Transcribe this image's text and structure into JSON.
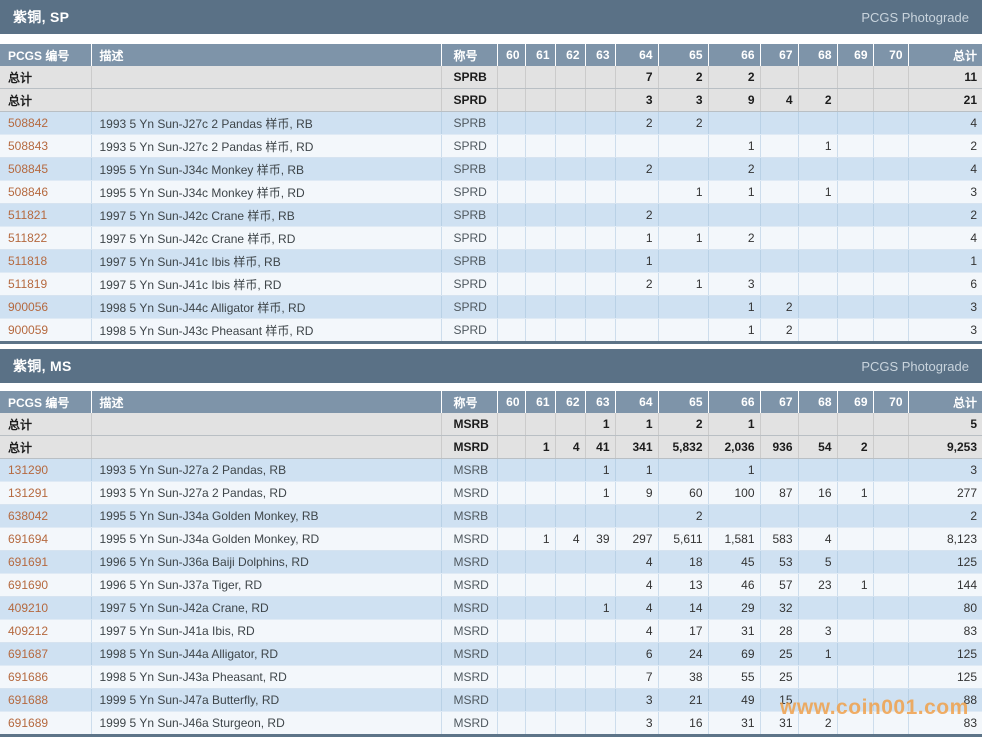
{
  "photograde_label": "PCGS Photograde",
  "total_label": "总计",
  "watermark": "www.coin001.com",
  "header": {
    "pcgs": "PCGS 编号",
    "desc": "描述",
    "grade": "称号",
    "total": "总计"
  },
  "columns": [
    "60",
    "61",
    "62",
    "63",
    "64",
    "65",
    "66",
    "67",
    "68",
    "69",
    "70"
  ],
  "colors": {
    "section_bar": "#5A7186",
    "column_header": "#7E94A9",
    "totals_row_bg": "#E2E2E2",
    "row_blue": "#CFE1F2",
    "row_white": "#F3F7FB",
    "pcgs_link": "#B5693F",
    "watermark": "#F0A04C"
  },
  "sections": [
    {
      "title": "紫铜, SP",
      "totals": [
        {
          "grade": "SPRB",
          "values": {
            "64": "7",
            "65": "2",
            "66": "2"
          },
          "total": "11"
        },
        {
          "grade": "SPRD",
          "values": {
            "64": "3",
            "65": "3",
            "66": "9",
            "67": "4",
            "68": "2"
          },
          "total": "21"
        }
      ],
      "rows": [
        {
          "pcgs": "508842",
          "desc": "1993 5 Yn Sun-J27c 2 Pandas 样币, RB",
          "grade": "SPRB",
          "values": {
            "64": "2",
            "65": "2"
          },
          "total": "4"
        },
        {
          "pcgs": "508843",
          "desc": "1993 5 Yn Sun-J27c 2 Pandas 样币, RD",
          "grade": "SPRD",
          "values": {
            "66": "1",
            "68": "1"
          },
          "total": "2"
        },
        {
          "pcgs": "508845",
          "desc": "1995 5 Yn Sun-J34c Monkey 样币, RB",
          "grade": "SPRB",
          "values": {
            "64": "2",
            "66": "2"
          },
          "total": "4"
        },
        {
          "pcgs": "508846",
          "desc": "1995 5 Yn Sun-J34c Monkey 样币, RD",
          "grade": "SPRD",
          "values": {
            "65": "1",
            "66": "1",
            "68": "1"
          },
          "total": "3"
        },
        {
          "pcgs": "511821",
          "desc": "1997 5 Yn Sun-J42c Crane 样币, RB",
          "grade": "SPRB",
          "values": {
            "64": "2"
          },
          "total": "2"
        },
        {
          "pcgs": "511822",
          "desc": "1997 5 Yn Sun-J42c Crane 样币, RD",
          "grade": "SPRD",
          "values": {
            "64": "1",
            "65": "1",
            "66": "2"
          },
          "total": "4"
        },
        {
          "pcgs": "511818",
          "desc": "1997 5 Yn Sun-J41c Ibis 样币, RB",
          "grade": "SPRB",
          "values": {
            "64": "1"
          },
          "total": "1"
        },
        {
          "pcgs": "511819",
          "desc": "1997 5 Yn Sun-J41c Ibis 样币, RD",
          "grade": "SPRD",
          "values": {
            "64": "2",
            "65": "1",
            "66": "3"
          },
          "total": "6"
        },
        {
          "pcgs": "900056",
          "desc": "1998 5 Yn Sun-J44c Alligator 样币, RD",
          "grade": "SPRD",
          "values": {
            "66": "1",
            "67": "2"
          },
          "total": "3"
        },
        {
          "pcgs": "900059",
          "desc": "1998 5 Yn Sun-J43c Pheasant 样币, RD",
          "grade": "SPRD",
          "values": {
            "66": "1",
            "67": "2"
          },
          "total": "3"
        }
      ]
    },
    {
      "title": "紫铜, MS",
      "totals": [
        {
          "grade": "MSRB",
          "values": {
            "63": "1",
            "64": "1",
            "65": "2",
            "66": "1"
          },
          "total": "5"
        },
        {
          "grade": "MSRD",
          "values": {
            "61": "1",
            "62": "4",
            "63": "41",
            "64": "341",
            "65": "5,832",
            "66": "2,036",
            "67": "936",
            "68": "54",
            "69": "2"
          },
          "total": "9,253"
        }
      ],
      "rows": [
        {
          "pcgs": "131290",
          "desc": "1993 5 Yn Sun-J27a 2 Pandas, RB",
          "grade": "MSRB",
          "values": {
            "63": "1",
            "64": "1",
            "66": "1"
          },
          "total": "3"
        },
        {
          "pcgs": "131291",
          "desc": "1993 5 Yn Sun-J27a 2 Pandas, RD",
          "grade": "MSRD",
          "values": {
            "63": "1",
            "64": "9",
            "65": "60",
            "66": "100",
            "67": "87",
            "68": "16",
            "69": "1"
          },
          "total": "277"
        },
        {
          "pcgs": "638042",
          "desc": "1995 5 Yn Sun-J34a Golden Monkey, RB",
          "grade": "MSRB",
          "values": {
            "65": "2"
          },
          "total": "2"
        },
        {
          "pcgs": "691694",
          "desc": "1995 5 Yn Sun-J34a Golden Monkey, RD",
          "grade": "MSRD",
          "values": {
            "61": "1",
            "62": "4",
            "63": "39",
            "64": "297",
            "65": "5,611",
            "66": "1,581",
            "67": "583",
            "68": "4"
          },
          "total": "8,123"
        },
        {
          "pcgs": "691691",
          "desc": "1996 5 Yn Sun-J36a Baiji Dolphins, RD",
          "grade": "MSRD",
          "values": {
            "64": "4",
            "65": "18",
            "66": "45",
            "67": "53",
            "68": "5"
          },
          "total": "125"
        },
        {
          "pcgs": "691690",
          "desc": "1996 5 Yn Sun-J37a Tiger, RD",
          "grade": "MSRD",
          "values": {
            "64": "4",
            "65": "13",
            "66": "46",
            "67": "57",
            "68": "23",
            "69": "1"
          },
          "total": "144"
        },
        {
          "pcgs": "409210",
          "desc": "1997 5 Yn Sun-J42a Crane, RD",
          "grade": "MSRD",
          "values": {
            "63": "1",
            "64": "4",
            "65": "14",
            "66": "29",
            "67": "32"
          },
          "total": "80"
        },
        {
          "pcgs": "409212",
          "desc": "1997 5 Yn Sun-J41a Ibis, RD",
          "grade": "MSRD",
          "values": {
            "64": "4",
            "65": "17",
            "66": "31",
            "67": "28",
            "68": "3"
          },
          "total": "83"
        },
        {
          "pcgs": "691687",
          "desc": "1998 5 Yn Sun-J44a Alligator, RD",
          "grade": "MSRD",
          "values": {
            "64": "6",
            "65": "24",
            "66": "69",
            "67": "25",
            "68": "1"
          },
          "total": "125"
        },
        {
          "pcgs": "691686",
          "desc": "1998 5 Yn Sun-J43a Pheasant, RD",
          "grade": "MSRD",
          "values": {
            "64": "7",
            "65": "38",
            "66": "55",
            "67": "25"
          },
          "total": "125"
        },
        {
          "pcgs": "691688",
          "desc": "1999 5 Yn Sun-J47a Butterfly, RD",
          "grade": "MSRD",
          "values": {
            "64": "3",
            "65": "21",
            "66": "49",
            "67": "15"
          },
          "total": "88"
        },
        {
          "pcgs": "691689",
          "desc": "1999 5 Yn Sun-J46a Sturgeon, RD",
          "grade": "MSRD",
          "values": {
            "64": "3",
            "65": "16",
            "66": "31",
            "67": "31",
            "68": "2"
          },
          "total": "83"
        }
      ]
    }
  ]
}
